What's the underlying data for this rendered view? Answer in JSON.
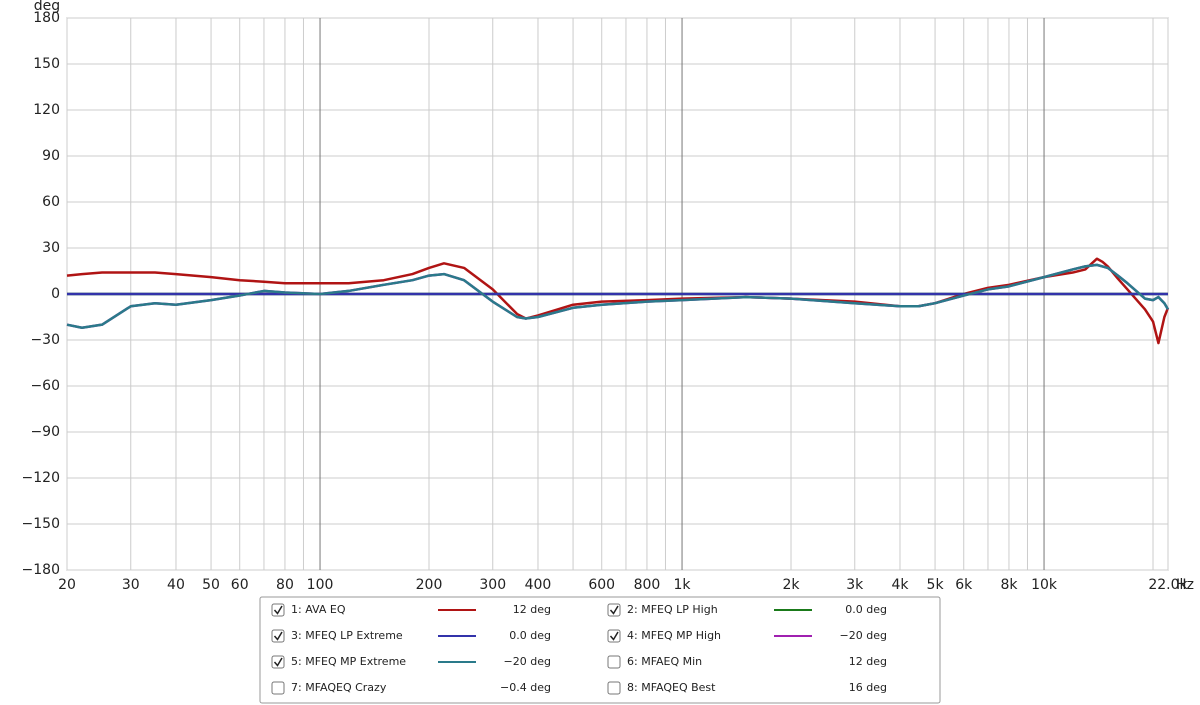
{
  "chart_data": {
    "type": "line",
    "y_unit": "deg",
    "x_unit": "Hz",
    "log_x": true,
    "grid": true,
    "xlim": [
      20,
      22000
    ],
    "ylim": [
      -180,
      180
    ],
    "yticks": [
      {
        "value": -180,
        "label": "−180"
      },
      {
        "value": -150,
        "label": "−150"
      },
      {
        "value": -120,
        "label": "−120"
      },
      {
        "value": -90,
        "label": "−90"
      },
      {
        "value": -60,
        "label": "−60"
      },
      {
        "value": -30,
        "label": "−30"
      },
      0,
      30,
      60,
      90,
      120,
      150,
      180
    ],
    "xticks": [
      20,
      30,
      40,
      50,
      60,
      80,
      100,
      200,
      300,
      400,
      600,
      800,
      {
        "value": 1000,
        "label": "1k"
      },
      {
        "value": 2000,
        "label": "2k"
      },
      {
        "value": 3000,
        "label": "3k"
      },
      {
        "value": 4000,
        "label": "4k"
      },
      {
        "value": 5000,
        "label": "5k"
      },
      {
        "value": 6000,
        "label": "6k"
      },
      {
        "value": 8000,
        "label": "8k"
      },
      {
        "value": 10000,
        "label": "10k"
      },
      {
        "value": 22000,
        "label": "22.0k"
      }
    ],
    "x_minor_grid": [
      70,
      90,
      500,
      700,
      900,
      7000,
      9000,
      20000
    ],
    "x": [
      20,
      22,
      25,
      30,
      35,
      40,
      50,
      60,
      70,
      80,
      100,
      120,
      150,
      180,
      200,
      220,
      250,
      300,
      350,
      370,
      400,
      500,
      600,
      800,
      1000,
      1500,
      2000,
      3000,
      4000,
      4500,
      5000,
      6000,
      7000,
      8000,
      10000,
      12000,
      13000,
      14000,
      14500,
      15000,
      16000,
      17000,
      19000,
      20000,
      20700,
      21500,
      22000
    ],
    "series": [
      {
        "name": "1: AVA EQ",
        "color": "#b01414",
        "checked": true,
        "legend_value": 12,
        "legend_label": "12 deg",
        "values": [
          12,
          13,
          14,
          14,
          14,
          13,
          11,
          9,
          8,
          7,
          7,
          7,
          9,
          13,
          17,
          20,
          17,
          3,
          -13,
          -16,
          -14,
          -7,
          -5,
          -4,
          -3,
          -2,
          -3,
          -5,
          -8,
          -8,
          -6,
          0,
          4,
          6,
          11,
          14,
          16,
          23,
          21,
          18,
          10,
          3,
          -10,
          -18,
          -32,
          -15,
          -9
        ]
      },
      {
        "name": "2: MFEQ LP High",
        "color": "#1a7a1a",
        "checked": true,
        "legend_value": 0.0,
        "legend_label": "0.0 deg",
        "values": [
          0,
          0,
          0,
          0,
          0,
          0,
          0,
          0,
          0,
          0,
          0,
          0,
          0,
          0,
          0,
          0,
          0,
          0,
          0,
          0,
          0,
          0,
          0,
          0,
          0,
          0,
          0,
          0,
          0,
          0,
          0,
          0,
          0,
          0,
          0,
          0,
          0,
          0,
          0,
          0,
          0,
          0,
          0,
          0,
          0,
          0,
          0
        ]
      },
      {
        "name": "3: MFEQ LP Extreme",
        "color": "#3333aa",
        "checked": true,
        "legend_value": 0.0,
        "legend_label": "0.0 deg",
        "values": [
          0,
          0,
          0,
          0,
          0,
          0,
          0,
          0,
          0,
          0,
          0,
          0,
          0,
          0,
          0,
          0,
          0,
          0,
          0,
          0,
          0,
          0,
          0,
          0,
          0,
          0,
          0,
          0,
          0,
          0,
          0,
          0,
          0,
          0,
          0,
          0,
          0,
          0,
          0,
          0,
          0,
          0,
          0,
          0,
          0,
          0,
          0
        ]
      },
      {
        "name": "4: MFEQ MP High",
        "color": "#a020b0",
        "checked": true,
        "legend_value": -20,
        "legend_label": "−20 deg",
        "values": [
          -20,
          -22,
          -20,
          -8,
          -6,
          -7,
          -4,
          -1,
          2,
          1,
          0,
          2,
          6,
          9,
          12,
          13,
          9,
          -5,
          -15,
          -16,
          -15,
          -9,
          -7,
          -5,
          -4,
          -2,
          -3,
          -6,
          -8,
          -8,
          -6,
          -1,
          3,
          5,
          11,
          16,
          18,
          19,
          18,
          17,
          12,
          7,
          -3,
          -4,
          -2,
          -6,
          -10
        ]
      },
      {
        "name": "5: MFEQ MP Extreme",
        "color": "#2a7a8a",
        "checked": true,
        "legend_value": -20,
        "legend_label": "−20 deg",
        "values": [
          -20,
          -22,
          -20,
          -8,
          -6,
          -7,
          -4,
          -1,
          2,
          1,
          0,
          2,
          6,
          9,
          12,
          13,
          9,
          -5,
          -15,
          -16,
          -15,
          -9,
          -7,
          -5,
          -4,
          -2,
          -3,
          -6,
          -8,
          -8,
          -6,
          -1,
          3,
          5,
          11,
          16,
          18,
          19,
          18,
          17,
          12,
          7,
          -3,
          -4,
          -2,
          -6,
          -10
        ]
      },
      {
        "name": "6: MFAEQ Min",
        "color": "#b08a00",
        "checked": false,
        "legend_value": 12,
        "legend_label": "12 deg"
      },
      {
        "name": "7: MFAQEQ Crazy",
        "color": "#20a060",
        "checked": false,
        "legend_value": -0.4,
        "legend_label": "−0.4 deg"
      },
      {
        "name": "8: MFAQEQ Best",
        "color": "#8030a0",
        "checked": false,
        "legend_value": 16,
        "legend_label": "16 deg"
      }
    ]
  }
}
